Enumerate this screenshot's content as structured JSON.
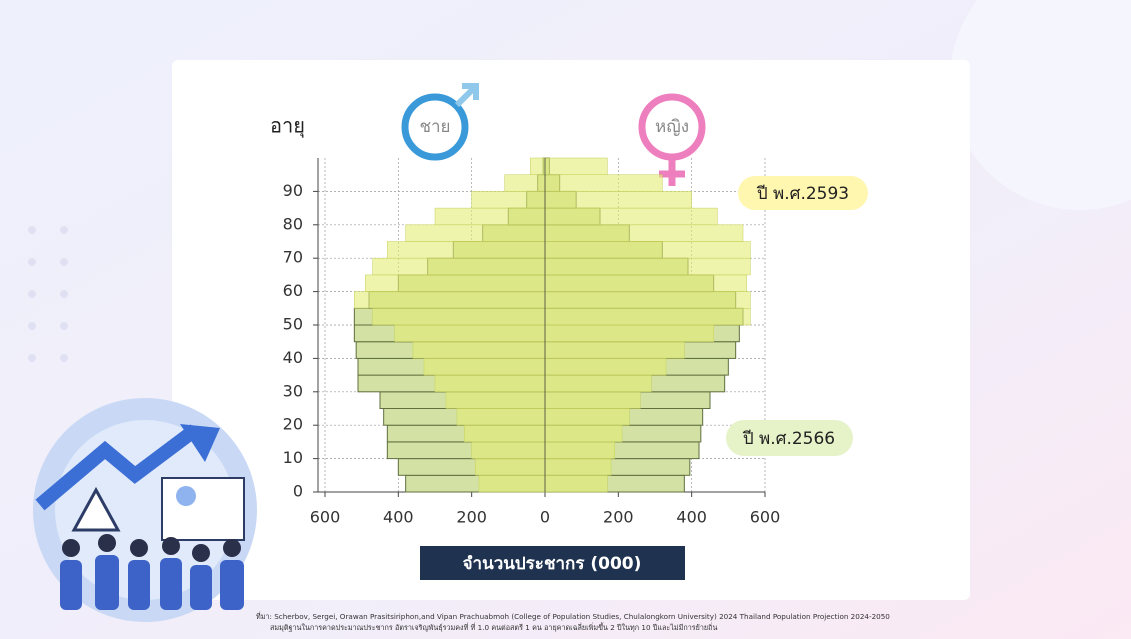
{
  "chart_data": {
    "type": "pyramid",
    "age_label": "อายุ",
    "left_label": "ชาย",
    "right_label": "หญิง",
    "xlabel": "จำนวนประชากร (000)",
    "xlim": [
      -600,
      600
    ],
    "xticks": [
      {
        "value": -600,
        "label": "600"
      },
      {
        "value": -400,
        "label": "400"
      },
      {
        "value": -200,
        "label": "200"
      },
      0,
      200,
      400,
      600
    ],
    "ylim": [
      0,
      100
    ],
    "yticks": [
      0,
      10,
      20,
      30,
      40,
      50,
      60,
      70,
      80,
      90
    ],
    "grid": true,
    "ages": [
      0,
      5,
      10,
      15,
      20,
      25,
      30,
      35,
      40,
      45,
      50,
      55,
      60,
      65,
      70,
      75,
      80,
      85,
      90,
      95
    ],
    "series": [
      {
        "name": "ปี พ.ศ.2566",
        "color": "#d3e2a4",
        "male": [
          380,
          400,
          430,
          430,
          440,
          450,
          510,
          510,
          515,
          520,
          520,
          480,
          400,
          320,
          250,
          170,
          100,
          50,
          20,
          5
        ],
        "female": [
          380,
          395,
          420,
          425,
          430,
          450,
          490,
          500,
          520,
          530,
          540,
          520,
          460,
          390,
          320,
          230,
          150,
          85,
          40,
          12
        ]
      },
      {
        "name": "ปี พ.ศ.2593",
        "color": "#e3ec74",
        "male": [
          180,
          190,
          200,
          220,
          240,
          270,
          300,
          330,
          360,
          410,
          470,
          520,
          490,
          470,
          430,
          380,
          300,
          200,
          110,
          40
        ],
        "female": [
          170,
          180,
          190,
          210,
          230,
          260,
          290,
          330,
          380,
          460,
          560,
          560,
          550,
          560,
          560,
          540,
          470,
          400,
          320,
          170
        ]
      }
    ],
    "source_lines": [
      "ที่มา: Scherbov, Sergei, Orawan Prasitsiriphon,and Vipan Prachuabmoh (College of Population Studies, Chulalongkorn University) 2024 Thailand Population Projection 2024-2050",
      "สมมุติฐานในการคาดประมาณประชากร อัตราเจริญพันธุ์รวมคงที่ ที่ 1.0 คนต่อสตรี 1 คน อายุคาดเฉลี่ยเพิ่มขึ้น 2 ปีในทุก 10 ปีและไม่มีการย้ายถิ่น"
    ]
  }
}
